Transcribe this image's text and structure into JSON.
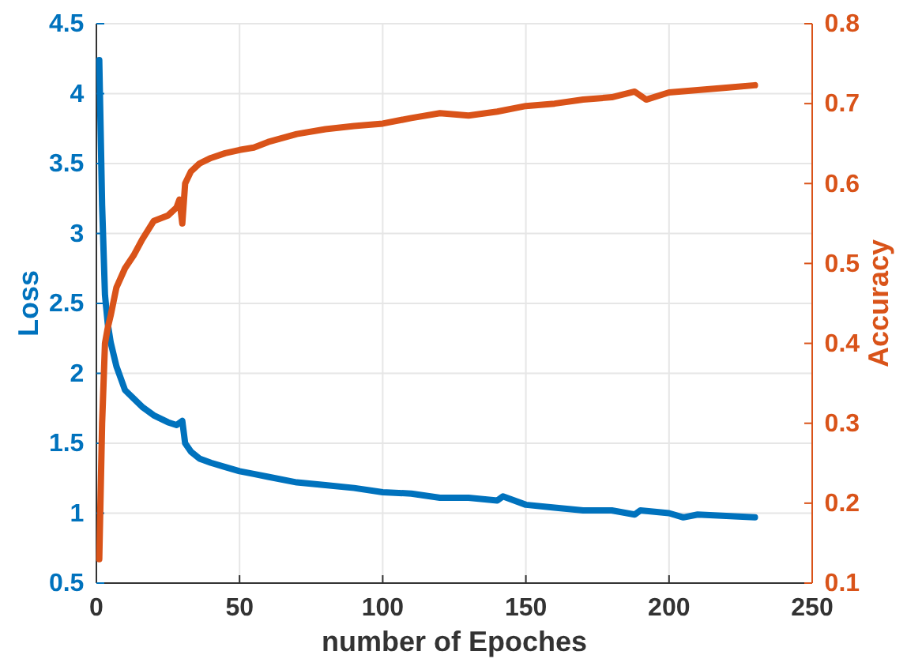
{
  "chart_data": {
    "type": "line",
    "xlabel": "number of Epoches",
    "ylabel": "Loss",
    "y2label": "Accuracy",
    "xlim": [
      0,
      250
    ],
    "xticks": [
      0,
      50,
      100,
      150,
      200,
      250
    ],
    "ylim": [
      0.5,
      4.5
    ],
    "yticks": [
      0.5,
      1,
      1.5,
      2,
      2.5,
      3,
      3.5,
      4,
      4.5
    ],
    "y2lim": [
      0.1,
      0.8
    ],
    "y2ticks": [
      0.1,
      0.2,
      0.3,
      0.4,
      0.5,
      0.6,
      0.7,
      0.8
    ],
    "grid": true,
    "series": [
      {
        "color": "#0072bd",
        "x": [
          1,
          2,
          3,
          4,
          5,
          7,
          10,
          13,
          16,
          20,
          25,
          28,
          30,
          31,
          33,
          36,
          40,
          45,
          50,
          55,
          60,
          70,
          80,
          90,
          100,
          110,
          120,
          130,
          140,
          142,
          150,
          160,
          170,
          180,
          188,
          190,
          200,
          205,
          210,
          220,
          230
        ],
        "values": [
          4.24,
          3.2,
          2.56,
          2.35,
          2.22,
          2.05,
          1.88,
          1.82,
          1.76,
          1.7,
          1.65,
          1.63,
          1.66,
          1.5,
          1.44,
          1.39,
          1.36,
          1.33,
          1.3,
          1.28,
          1.26,
          1.22,
          1.2,
          1.18,
          1.15,
          1.14,
          1.11,
          1.11,
          1.09,
          1.12,
          1.06,
          1.04,
          1.02,
          1.02,
          0.99,
          1.02,
          1.0,
          0.97,
          0.99,
          0.98,
          0.97
        ]
      },
      {
        "axis": "y2",
        "color": "#d95319",
        "x": [
          1,
          2,
          3,
          4,
          5,
          7,
          10,
          13,
          16,
          20,
          25,
          28,
          29,
          30,
          31,
          33,
          36,
          40,
          45,
          50,
          55,
          60,
          70,
          80,
          90,
          100,
          110,
          120,
          130,
          140,
          150,
          160,
          170,
          180,
          188,
          192,
          200,
          210,
          220,
          230
        ],
        "values": [
          0.13,
          0.3,
          0.4,
          0.42,
          0.435,
          0.47,
          0.494,
          0.51,
          0.53,
          0.553,
          0.56,
          0.57,
          0.58,
          0.55,
          0.6,
          0.615,
          0.625,
          0.632,
          0.638,
          0.642,
          0.645,
          0.652,
          0.662,
          0.668,
          0.672,
          0.675,
          0.682,
          0.688,
          0.685,
          0.69,
          0.697,
          0.7,
          0.705,
          0.708,
          0.715,
          0.705,
          0.714,
          0.717,
          0.72,
          0.723
        ]
      }
    ]
  }
}
